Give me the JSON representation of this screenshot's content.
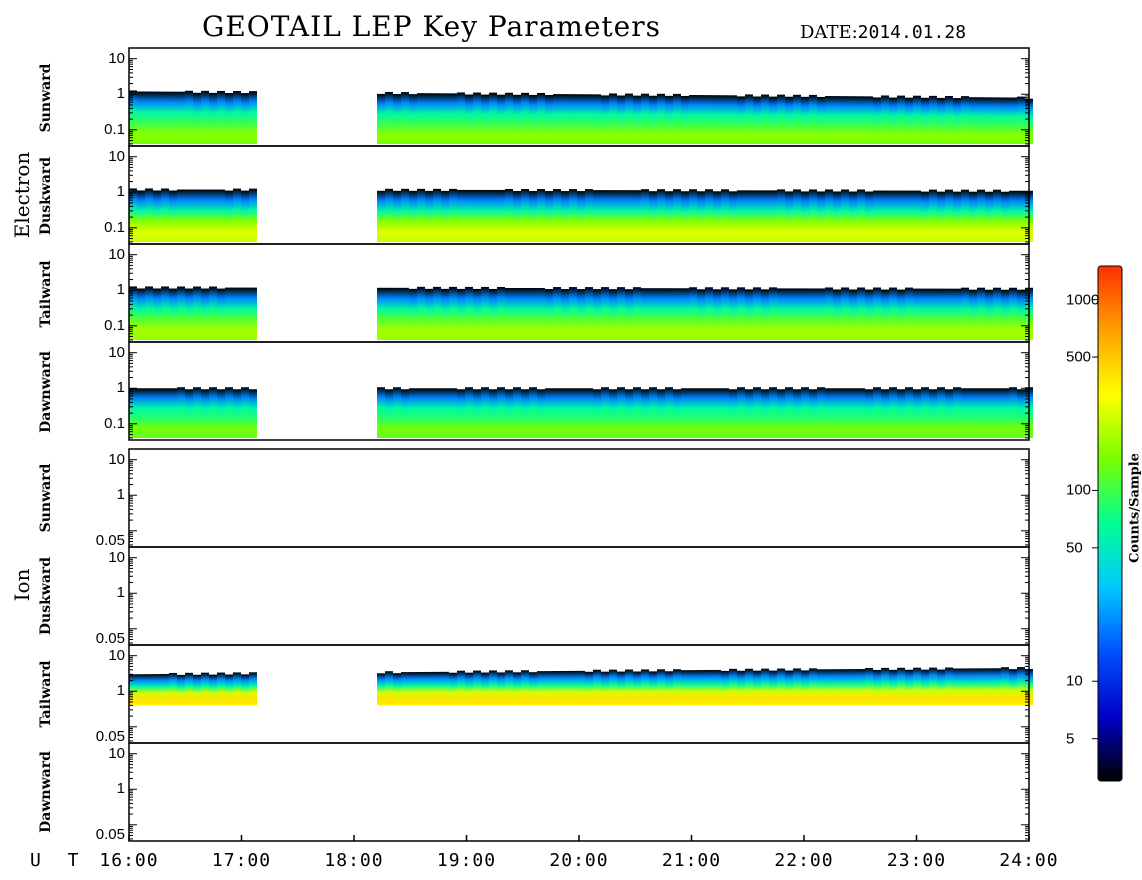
{
  "header": {
    "title": "GEOTAIL LEP Key Parameters",
    "date_label": "DATE:",
    "date_value": "2014.01.28"
  },
  "groups": [
    {
      "name": "Electron"
    },
    {
      "name": "Ion"
    }
  ],
  "x_axis": {
    "prefix": "U T",
    "ticks": [
      "16:00",
      "17:00",
      "18:00",
      "19:00",
      "20:00",
      "21:00",
      "22:00",
      "23:00",
      "24:00"
    ]
  },
  "colorbar": {
    "label": "Counts/Sample",
    "ticks": [
      "1000",
      "500",
      "100",
      "50",
      "10",
      "5"
    ],
    "tick_values": [
      1000,
      500,
      100,
      50,
      10,
      5
    ],
    "range": [
      3,
      1500
    ],
    "scale": "log",
    "colors": [
      "#000000",
      "#0000c8",
      "#0050ff",
      "#00c8ff",
      "#00ff96",
      "#78ff00",
      "#ffff00",
      "#ffa000",
      "#ff3000"
    ]
  },
  "chart_data": {
    "type": "heatmap",
    "title": "GEOTAIL LEP Key Parameters",
    "x_range_hours": [
      16,
      24
    ],
    "data_gap_hours": [
      17.1,
      18.15
    ],
    "y_scale": "log",
    "panels": [
      {
        "group": "Electron",
        "direction": "Sunward",
        "yticks": [
          "10",
          "1",
          "0.1"
        ],
        "ylim": [
          0.035,
          20
        ],
        "band_top": [
          1.2,
          0.8
        ],
        "core_level": 160,
        "color_scale": "log"
      },
      {
        "group": "Electron",
        "direction": "Duskward",
        "yticks": [
          "10",
          "1",
          "0.1"
        ],
        "ylim": [
          0.035,
          20
        ],
        "band_top": [
          1.2,
          1.1
        ],
        "core_level": 260,
        "color_scale": "log"
      },
      {
        "group": "Electron",
        "direction": "Tailward",
        "yticks": [
          "10",
          "1",
          "0.1"
        ],
        "ylim": [
          0.035,
          20
        ],
        "band_top": [
          1.2,
          1.1
        ],
        "core_level": 190,
        "color_scale": "log"
      },
      {
        "group": "Electron",
        "direction": "Dawnward",
        "yticks": [
          "10",
          "1",
          "0.1"
        ],
        "ylim": [
          0.035,
          20
        ],
        "band_top": [
          1.0,
          1.0
        ],
        "core_level": 140,
        "color_scale": "log"
      },
      {
        "group": "Ion",
        "direction": "Sunward",
        "yticks": [
          "10",
          "1",
          "0.05"
        ],
        "ylim": [
          0.035,
          20
        ],
        "band_top": null,
        "core_level": null
      },
      {
        "group": "Ion",
        "direction": "Duskward",
        "yticks": [
          "10",
          "1",
          "0.05"
        ],
        "ylim": [
          0.035,
          20
        ],
        "band_top": null,
        "core_level": null
      },
      {
        "group": "Ion",
        "direction": "Tailward",
        "yticks": [
          "10",
          "1",
          "0.05"
        ],
        "ylim": [
          0.035,
          20
        ],
        "band_top": [
          3.0,
          4.5
        ],
        "core_level": 400,
        "color_scale": "log"
      },
      {
        "group": "Ion",
        "direction": "Dawnward",
        "yticks": [
          "10",
          "1",
          "0.05"
        ],
        "ylim": [
          0.035,
          20
        ],
        "band_top": null,
        "core_level": null
      }
    ]
  }
}
